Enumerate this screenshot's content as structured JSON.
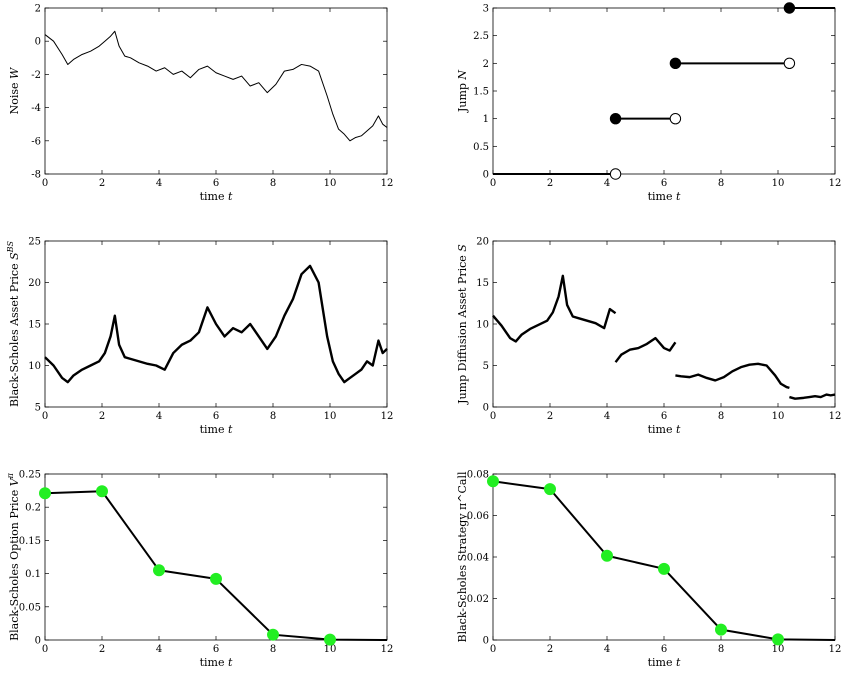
{
  "chart_data": [
    {
      "id": "noise",
      "type": "line",
      "xlabel": "time t",
      "ylabel": "Noise W",
      "xlim": [
        0,
        12
      ],
      "ylim": [
        -8,
        2
      ],
      "xticks": [
        0,
        2,
        4,
        6,
        8,
        10,
        12
      ],
      "yticks": [
        -8,
        -6,
        -4,
        -2,
        0,
        2
      ],
      "line_width": "thin",
      "series": [
        {
          "x": [
            0,
            0.3,
            0.6,
            0.8,
            1.0,
            1.3,
            1.6,
            1.9,
            2.1,
            2.3,
            2.45,
            2.6,
            2.8,
            3.0,
            3.3,
            3.6,
            3.9,
            4.2,
            4.5,
            4.8,
            5.1,
            5.4,
            5.7,
            6.0,
            6.3,
            6.6,
            6.9,
            7.2,
            7.5,
            7.8,
            8.1,
            8.4,
            8.7,
            9.0,
            9.3,
            9.6,
            9.9,
            10.1,
            10.3,
            10.5,
            10.7,
            10.9,
            11.1,
            11.3,
            11.5,
            11.7,
            11.85,
            12.0
          ],
          "y": [
            0.4,
            0.0,
            -0.8,
            -1.4,
            -1.1,
            -0.8,
            -0.6,
            -0.3,
            0.0,
            0.3,
            0.6,
            -0.3,
            -0.9,
            -1.0,
            -1.3,
            -1.5,
            -1.8,
            -1.6,
            -2.0,
            -1.8,
            -2.2,
            -1.7,
            -1.5,
            -1.9,
            -2.1,
            -2.3,
            -2.1,
            -2.7,
            -2.5,
            -3.1,
            -2.6,
            -1.8,
            -1.7,
            -1.4,
            -1.5,
            -1.8,
            -3.3,
            -4.4,
            -5.3,
            -5.6,
            -6.0,
            -5.8,
            -5.7,
            -5.4,
            -5.1,
            -4.5,
            -5.0,
            -5.2
          ]
        }
      ]
    },
    {
      "id": "jump",
      "type": "step",
      "xlabel": "time t",
      "ylabel": "Jump N",
      "xlim": [
        0,
        12
      ],
      "ylim": [
        0,
        3
      ],
      "xticks": [
        0,
        2,
        4,
        6,
        8,
        10,
        12
      ],
      "yticks": [
        0,
        0.5,
        1,
        1.5,
        2,
        2.5,
        3
      ],
      "segments": [
        {
          "x0": 0,
          "x1": 4.3,
          "y": 0,
          "filled_start": false,
          "open_end": true
        },
        {
          "x0": 4.3,
          "x1": 6.4,
          "y": 1,
          "filled_start": true,
          "open_end": true
        },
        {
          "x0": 6.4,
          "x1": 10.4,
          "y": 2,
          "filled_start": true,
          "open_end": true
        },
        {
          "x0": 10.4,
          "x1": 12,
          "y": 3,
          "filled_start": true,
          "open_end": false
        }
      ]
    },
    {
      "id": "bs-asset",
      "type": "line",
      "xlabel": "time t",
      "ylabel": "Black-Scholes Asset Price S^BS",
      "xlim": [
        0,
        12
      ],
      "ylim": [
        5,
        25
      ],
      "xticks": [
        0,
        2,
        4,
        6,
        8,
        10,
        12
      ],
      "yticks": [
        5,
        10,
        15,
        20,
        25
      ],
      "line_width": "thick",
      "series": [
        {
          "x": [
            0,
            0.3,
            0.6,
            0.8,
            1.0,
            1.3,
            1.6,
            1.9,
            2.1,
            2.3,
            2.45,
            2.6,
            2.8,
            3.0,
            3.3,
            3.6,
            3.9,
            4.2,
            4.5,
            4.8,
            5.1,
            5.4,
            5.7,
            6.0,
            6.3,
            6.6,
            6.9,
            7.2,
            7.5,
            7.8,
            8.1,
            8.4,
            8.7,
            9.0,
            9.3,
            9.6,
            9.9,
            10.1,
            10.3,
            10.5,
            10.7,
            10.9,
            11.1,
            11.3,
            11.5,
            11.7,
            11.85,
            12.0
          ],
          "y": [
            11.0,
            10.0,
            8.5,
            8.0,
            8.8,
            9.5,
            10.0,
            10.5,
            11.5,
            13.5,
            16.0,
            12.5,
            11.0,
            10.8,
            10.5,
            10.2,
            10.0,
            9.5,
            11.5,
            12.5,
            13.0,
            14.0,
            17.0,
            15.0,
            13.5,
            14.5,
            14.0,
            15.0,
            13.5,
            12.0,
            13.5,
            16.0,
            18.0,
            21.0,
            22.0,
            20.0,
            13.5,
            10.5,
            9.0,
            8.0,
            8.5,
            9.0,
            9.5,
            10.5,
            10.0,
            13.0,
            11.5,
            12.0
          ]
        }
      ]
    },
    {
      "id": "jd-asset",
      "type": "line",
      "xlabel": "time t",
      "ylabel": "Jump Diffusion Asset Price S",
      "xlim": [
        0,
        12
      ],
      "ylim": [
        0,
        20
      ],
      "xticks": [
        0,
        2,
        4,
        6,
        8,
        10,
        12
      ],
      "yticks": [
        0,
        5,
        10,
        15,
        20
      ],
      "line_width": "thick",
      "series": [
        {
          "x": [
            0,
            0.3,
            0.6,
            0.8,
            1.0,
            1.3,
            1.6,
            1.9,
            2.1,
            2.3,
            2.45,
            2.6,
            2.8,
            3.0,
            3.3,
            3.6,
            3.9,
            4.1,
            4.3
          ],
          "y": [
            11.0,
            9.8,
            8.3,
            7.9,
            8.7,
            9.4,
            9.9,
            10.4,
            11.4,
            13.3,
            15.8,
            12.3,
            10.9,
            10.7,
            10.4,
            10.1,
            9.5,
            11.8,
            11.3
          ]
        },
        {
          "x": [
            4.3,
            4.5,
            4.8,
            5.1,
            5.4,
            5.7,
            6.0,
            6.2,
            6.4
          ],
          "y": [
            5.4,
            6.3,
            6.9,
            7.1,
            7.6,
            8.3,
            7.1,
            6.8,
            7.8
          ]
        },
        {
          "x": [
            6.4,
            6.6,
            6.9,
            7.2,
            7.5,
            7.8,
            8.1,
            8.4,
            8.7,
            9.0,
            9.3,
            9.6,
            9.9,
            10.1,
            10.3,
            10.4
          ],
          "y": [
            3.8,
            3.7,
            3.6,
            3.9,
            3.5,
            3.2,
            3.6,
            4.3,
            4.8,
            5.1,
            5.2,
            5.0,
            3.8,
            2.8,
            2.4,
            2.3
          ]
        },
        {
          "x": [
            10.4,
            10.6,
            10.9,
            11.1,
            11.3,
            11.5,
            11.7,
            11.85,
            12.0
          ],
          "y": [
            1.2,
            1.0,
            1.1,
            1.2,
            1.3,
            1.2,
            1.5,
            1.4,
            1.5
          ]
        }
      ]
    },
    {
      "id": "bs-option",
      "type": "line",
      "xlabel": "time t",
      "ylabel": "Black-Scholes Option Price V^π",
      "xlim": [
        0,
        12
      ],
      "ylim": [
        0,
        0.25
      ],
      "xticks": [
        0,
        2,
        4,
        6,
        8,
        10,
        12
      ],
      "yticks": [
        0,
        0.05,
        0.1,
        0.15,
        0.2,
        0.25
      ],
      "line_width": "medium",
      "marker_color": "#22ee22",
      "series": [
        {
          "x": [
            0,
            2,
            4,
            6,
            8,
            10,
            12
          ],
          "y": [
            0.221,
            0.224,
            0.105,
            0.092,
            0.008,
            0.0005,
            0.0
          ],
          "marker_count": 6
        }
      ]
    },
    {
      "id": "bs-strategy",
      "type": "line",
      "xlabel": "time t",
      "ylabel": "Black-Scholes Strategy π^Call",
      "xlim": [
        0,
        12
      ],
      "ylim": [
        0,
        0.08
      ],
      "xticks": [
        0,
        2,
        4,
        6,
        8,
        10,
        12
      ],
      "yticks": [
        0,
        0.02,
        0.04,
        0.06,
        0.08
      ],
      "line_width": "medium",
      "marker_color": "#22ee22",
      "series": [
        {
          "x": [
            0,
            2,
            4,
            6,
            8,
            10,
            12
          ],
          "y": [
            0.0765,
            0.0727,
            0.0406,
            0.0343,
            0.005,
            0.0003,
            0.0
          ],
          "marker_count": 6
        }
      ]
    }
  ]
}
